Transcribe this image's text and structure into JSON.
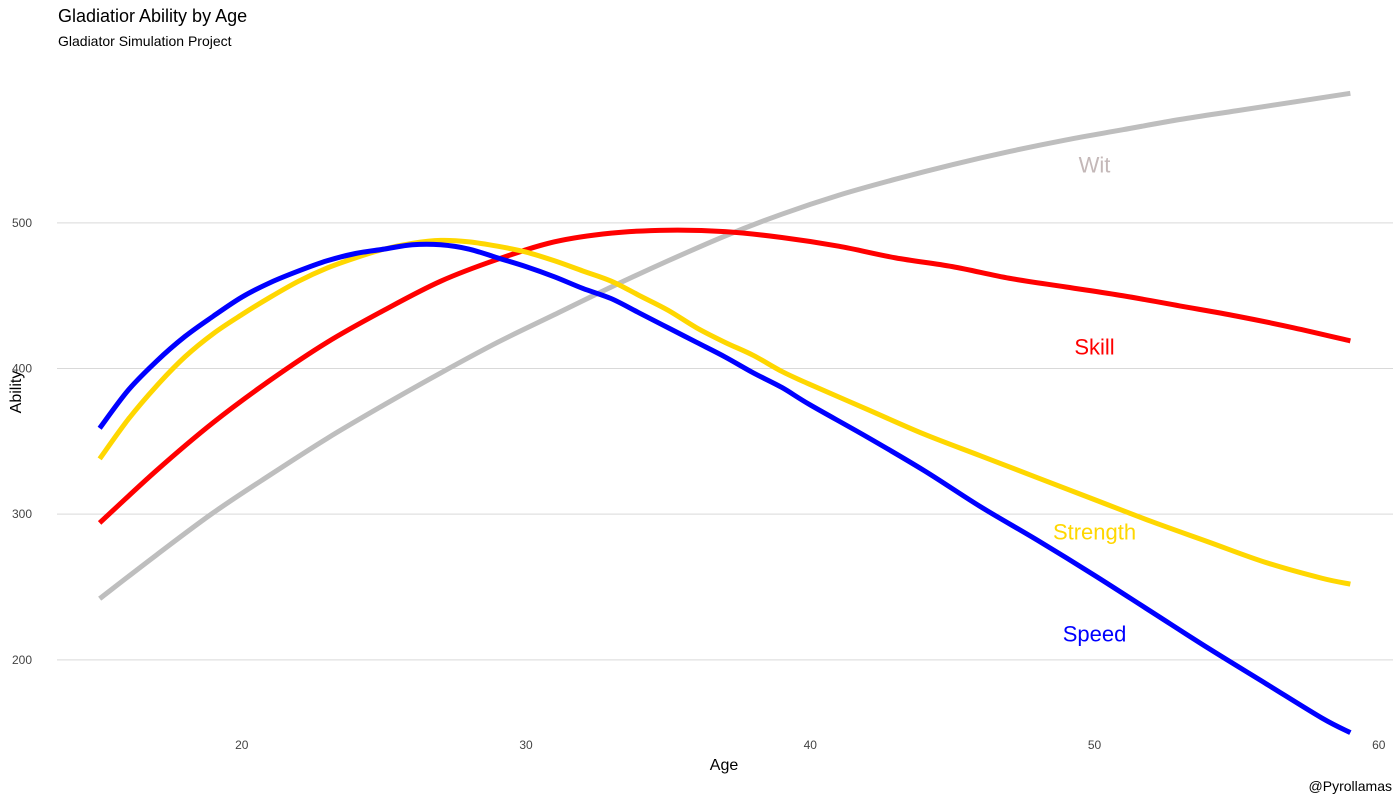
{
  "chart_data": {
    "type": "line",
    "title": "Gladiatior Ability by Age",
    "subtitle": "Gladiator Simulation Project",
    "caption": "@Pyrollamas",
    "xlabel": "Age",
    "ylabel": "Ability",
    "xlim": [
      13.5,
      60.5
    ],
    "ylim": [
      147,
      605
    ],
    "x_ticks": [
      20,
      30,
      40,
      50,
      60
    ],
    "y_ticks": [
      200,
      300,
      400,
      500
    ],
    "grid": "horizontal",
    "legend": "none",
    "series": [
      {
        "name": "Wit",
        "color": "#BEBEBE",
        "label_color": "#C4B8B8",
        "label_at": [
          50,
          540
        ],
        "x": [
          15,
          17,
          19,
          21,
          23,
          25,
          27,
          29,
          31,
          33,
          35,
          37,
          39,
          41,
          43,
          45,
          47,
          49,
          51,
          53,
          55,
          57,
          59
        ],
        "y": [
          242,
          272,
          301,
          327,
          352,
          375,
          397,
          418,
          437,
          456,
          474,
          491,
          506,
          519,
          530,
          540,
          549,
          557,
          564,
          571,
          577,
          583,
          589
        ]
      },
      {
        "name": "Skill",
        "color": "#FF0000",
        "label_color": "#FF0000",
        "label_at": [
          50,
          415
        ],
        "x": [
          15,
          17,
          19,
          21,
          23,
          25,
          27,
          29,
          31,
          33,
          35,
          37,
          39,
          41,
          43,
          45,
          47,
          49,
          51,
          53,
          55,
          57,
          59
        ],
        "y": [
          294,
          330,
          363,
          392,
          418,
          440,
          460,
          475,
          487,
          493,
          495,
          494,
          490,
          484,
          476,
          470,
          462,
          456,
          450,
          443,
          436,
          428,
          419
        ]
      },
      {
        "name": "Strength",
        "color": "#FFD700",
        "label_color": "#FFD700",
        "label_at": [
          50,
          288
        ],
        "x": [
          15,
          16,
          17,
          18,
          19,
          20,
          21,
          22,
          23,
          24,
          25,
          26,
          27,
          28,
          29,
          30,
          31,
          32,
          33,
          34,
          35,
          36,
          37,
          38,
          39,
          40,
          42,
          44,
          46,
          48,
          50,
          52,
          54,
          56,
          58,
          59
        ],
        "y": [
          338,
          365,
          388,
          408,
          424,
          437,
          449,
          460,
          469,
          476,
          482,
          486,
          488,
          487,
          484,
          480,
          474,
          467,
          460,
          450,
          440,
          428,
          418,
          409,
          398,
          389,
          372,
          355,
          340,
          325,
          310,
          295,
          281,
          267,
          256,
          252
        ]
      },
      {
        "name": "Speed",
        "color": "#0000FF",
        "label_color": "#0000FF",
        "label_at": [
          50,
          218
        ],
        "x": [
          15,
          16,
          17,
          18,
          19,
          20,
          21,
          22,
          23,
          24,
          25,
          26,
          27,
          28,
          29,
          30,
          31,
          32,
          33,
          34,
          35,
          36,
          37,
          38,
          39,
          40,
          42,
          44,
          46,
          48,
          50,
          52,
          54,
          56,
          58,
          59
        ],
        "y": [
          359,
          385,
          405,
          422,
          436,
          449,
          459,
          467,
          474,
          479,
          482,
          485,
          485,
          482,
          476,
          470,
          463,
          455,
          448,
          438,
          428,
          418,
          408,
          397,
          387,
          375,
          353,
          330,
          305,
          282,
          258,
          233,
          208,
          184,
          160,
          150
        ]
      }
    ]
  }
}
